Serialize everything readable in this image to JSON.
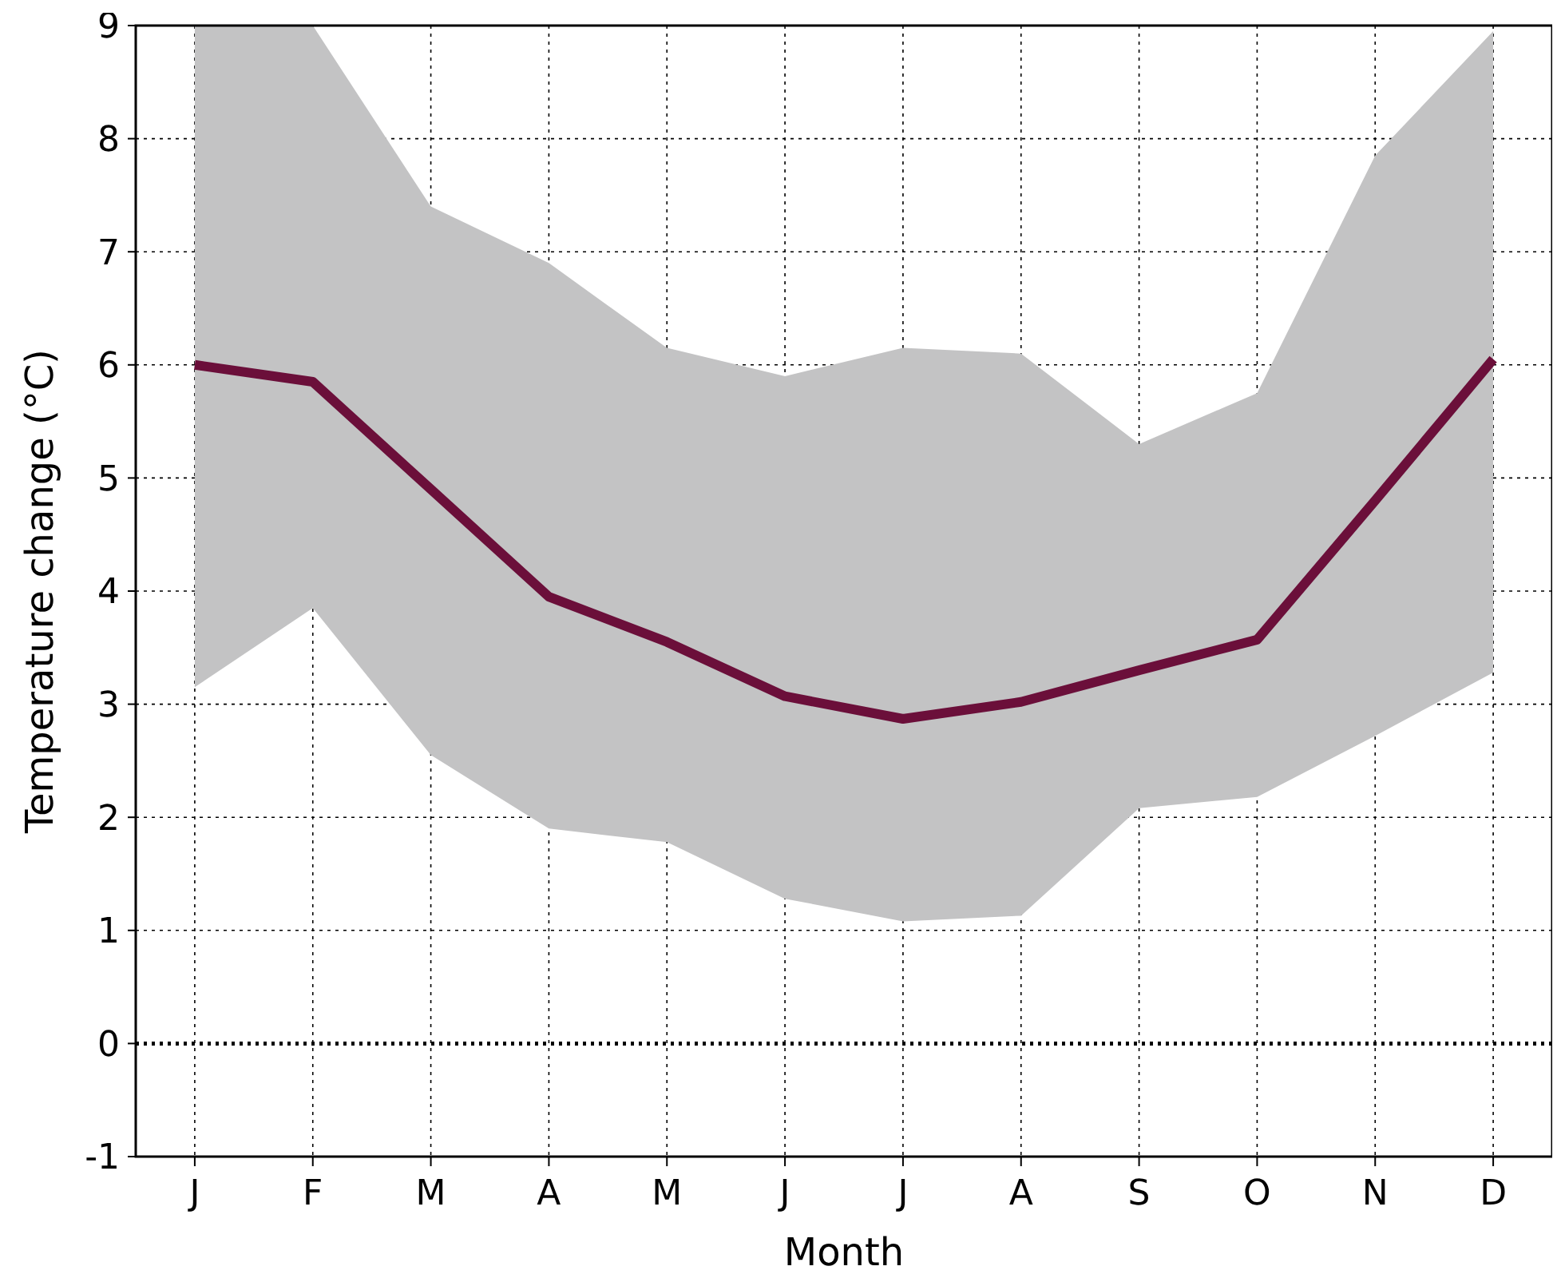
{
  "chart_data": {
    "type": "line",
    "xlabel": "Month",
    "ylabel": "Temperature change (°C)",
    "categories": [
      "J",
      "F",
      "M",
      "A",
      "M",
      "J",
      "J",
      "A",
      "S",
      "O",
      "N",
      "D"
    ],
    "series": [
      {
        "color": "#6b0f3a",
        "values": [
          6.0,
          5.85,
          4.9,
          3.95,
          3.55,
          3.07,
          2.87,
          3.02,
          3.3,
          3.57,
          4.8,
          6.05
        ],
        "lower": [
          3.15,
          3.85,
          2.55,
          1.9,
          1.78,
          1.28,
          1.08,
          1.13,
          2.08,
          2.18,
          2.72,
          3.28
        ],
        "upper": [
          9,
          9,
          7.4,
          6.9,
          6.15,
          5.9,
          6.15,
          6.1,
          5.3,
          5.75,
          7.85,
          8.95
        ]
      }
    ],
    "ylim": [
      -1,
      9
    ],
    "yticks": [
      -1,
      0,
      1,
      2,
      3,
      4,
      5,
      6,
      7,
      8,
      9
    ],
    "grid": true,
    "marker": "none",
    "line_style": "solid",
    "ref_lines": [
      {
        "axis": "y",
        "value": 0,
        "line_style": "dotted",
        "color": "#000000"
      }
    ]
  }
}
